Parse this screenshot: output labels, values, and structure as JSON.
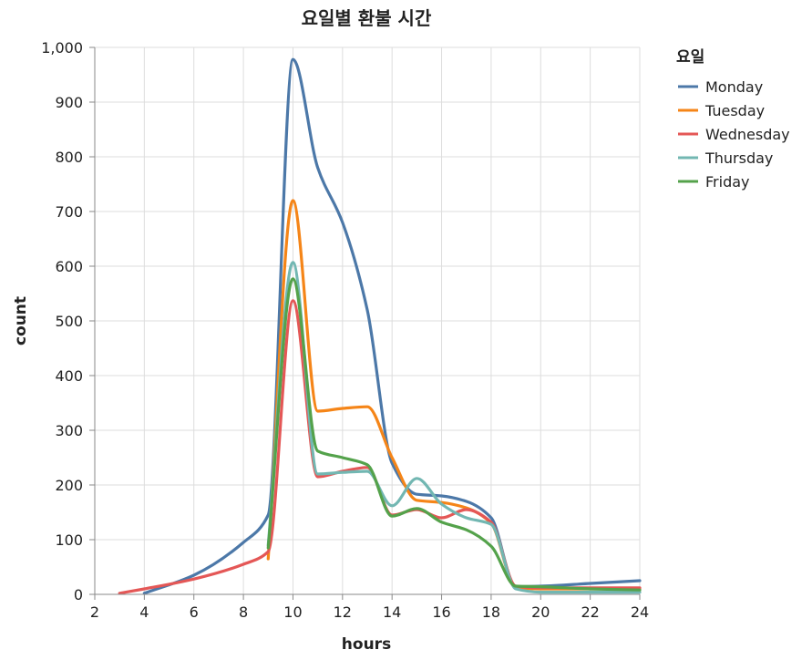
{
  "chart_data": {
    "type": "line",
    "title": "요일별 환불 시간",
    "xlabel": "hours",
    "ylabel": "count",
    "xlim": [
      2,
      24
    ],
    "ylim": [
      0,
      1000
    ],
    "x_ticks": [
      2,
      4,
      6,
      8,
      10,
      12,
      14,
      16,
      18,
      20,
      22,
      24
    ],
    "y_ticks": [
      0,
      100,
      200,
      300,
      400,
      500,
      600,
      700,
      800,
      900,
      1000
    ],
    "x_tick_labels": [
      "2",
      "4",
      "6",
      "8",
      "10",
      "12",
      "14",
      "16",
      "18",
      "20",
      "22",
      "24"
    ],
    "y_tick_labels": [
      "0",
      "100",
      "200",
      "300",
      "400",
      "500",
      "600",
      "700",
      "800",
      "900",
      "1,000"
    ],
    "grid": true,
    "legend": {
      "title": "요일",
      "placement": "right"
    },
    "series": [
      {
        "name": "Monday",
        "color": "#4c78a8",
        "points": [
          [
            4,
            2
          ],
          [
            6,
            35
          ],
          [
            8,
            95
          ],
          [
            9,
            145
          ],
          [
            10,
            978
          ],
          [
            11,
            780
          ],
          [
            12,
            680
          ],
          [
            13,
            520
          ],
          [
            14,
            240
          ],
          [
            15,
            183
          ],
          [
            16,
            180
          ],
          [
            17,
            170
          ],
          [
            18,
            140
          ],
          [
            19,
            14
          ],
          [
            20,
            15
          ],
          [
            22,
            20
          ],
          [
            24,
            25
          ]
        ]
      },
      {
        "name": "Tuesday",
        "color": "#f58518",
        "points": [
          [
            9,
            65
          ],
          [
            10,
            720
          ],
          [
            11,
            335
          ],
          [
            12,
            340
          ],
          [
            13,
            343
          ],
          [
            14,
            250
          ],
          [
            15,
            172
          ],
          [
            16,
            168
          ],
          [
            17,
            158
          ],
          [
            18,
            130
          ],
          [
            19,
            12
          ],
          [
            20,
            10
          ],
          [
            22,
            10
          ],
          [
            24,
            10
          ]
        ]
      },
      {
        "name": "Wednesday",
        "color": "#e45756",
        "points": [
          [
            3,
            2
          ],
          [
            4,
            10
          ],
          [
            6,
            28
          ],
          [
            8,
            55
          ],
          [
            9,
            78
          ],
          [
            10,
            537
          ],
          [
            11,
            215
          ],
          [
            12,
            225
          ],
          [
            13,
            232
          ],
          [
            14,
            145
          ],
          [
            15,
            155
          ],
          [
            16,
            140
          ],
          [
            17,
            155
          ],
          [
            18,
            132
          ],
          [
            19,
            15
          ],
          [
            20,
            12
          ],
          [
            22,
            12
          ],
          [
            24,
            12
          ]
        ]
      },
      {
        "name": "Thursday",
        "color": "#72b7b2",
        "points": [
          [
            9,
            90
          ],
          [
            10,
            607
          ],
          [
            11,
            220
          ],
          [
            12,
            223
          ],
          [
            13,
            225
          ],
          [
            14,
            162
          ],
          [
            15,
            212
          ],
          [
            16,
            165
          ],
          [
            17,
            140
          ],
          [
            18,
            128
          ],
          [
            19,
            10
          ],
          [
            20,
            4
          ],
          [
            22,
            4
          ],
          [
            24,
            4
          ]
        ]
      },
      {
        "name": "Friday",
        "color": "#54a24b",
        "points": [
          [
            9,
            85
          ],
          [
            10,
            577
          ],
          [
            11,
            262
          ],
          [
            12,
            250
          ],
          [
            13,
            237
          ],
          [
            14,
            143
          ],
          [
            15,
            157
          ],
          [
            16,
            132
          ],
          [
            17,
            118
          ],
          [
            18,
            88
          ],
          [
            19,
            15
          ],
          [
            20,
            14
          ],
          [
            22,
            10
          ],
          [
            24,
            8
          ]
        ]
      }
    ]
  }
}
